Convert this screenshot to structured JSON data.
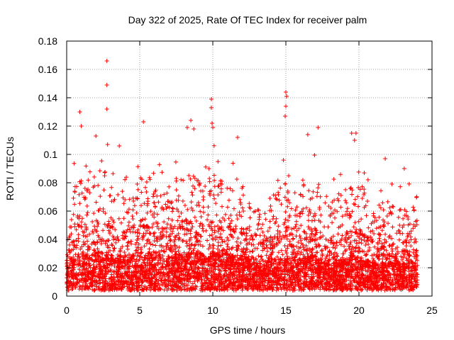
{
  "chart_data": {
    "type": "scatter",
    "title": "Day 322 of 2025, Rate Of TEC Index for receiver palm",
    "xlabel": "GPS time / hours",
    "ylabel": "ROTI / TECUs",
    "xlim": [
      0,
      25
    ],
    "ylim": [
      0,
      0.18
    ],
    "x_ticks": [
      0,
      5,
      10,
      15,
      20,
      25
    ],
    "x_tick_labels": [
      "0",
      "5",
      "10",
      "15",
      "20",
      "25"
    ],
    "y_ticks": [
      0,
      0.02,
      0.04,
      0.06,
      0.08,
      0.1,
      0.12,
      0.14,
      0.16,
      0.18
    ],
    "y_tick_labels": [
      "0",
      "0.02",
      "0.04",
      "0.06",
      "0.08",
      "0.1",
      "0.12",
      "0.14",
      "0.16",
      "0.18"
    ],
    "grid": true,
    "marker": "plus",
    "series_color": "#ff0000",
    "data_extent_hours": [
      0,
      24
    ],
    "envelope": {
      "x": [
        0,
        0.5,
        1,
        1.5,
        2,
        2.5,
        3,
        3.5,
        4,
        4.5,
        5,
        5.5,
        6,
        6.5,
        7,
        7.5,
        8,
        8.5,
        9,
        9.5,
        10,
        10.5,
        11,
        11.5,
        12,
        12.5,
        13,
        13.5,
        14,
        14.5,
        15,
        15.5,
        16,
        16.5,
        17,
        17.5,
        18,
        18.5,
        19,
        19.5,
        20,
        20.5,
        21,
        21.5,
        22,
        22.5,
        23,
        23.5,
        24
      ],
      "upper": [
        0.07,
        0.095,
        0.105,
        0.095,
        0.11,
        0.095,
        0.085,
        0.09,
        0.085,
        0.09,
        0.1,
        0.1,
        0.1,
        0.09,
        0.09,
        0.095,
        0.1,
        0.105,
        0.1,
        0.095,
        0.11,
        0.1,
        0.095,
        0.1,
        0.09,
        0.08,
        0.075,
        0.08,
        0.085,
        0.09,
        0.1,
        0.095,
        0.09,
        0.1,
        0.1,
        0.09,
        0.08,
        0.085,
        0.09,
        0.095,
        0.105,
        0.085,
        0.075,
        0.08,
        0.085,
        0.075,
        0.08,
        0.085,
        0.075
      ],
      "typical": [
        0.035,
        0.045,
        0.05,
        0.045,
        0.05,
        0.048,
        0.045,
        0.045,
        0.045,
        0.045,
        0.05,
        0.05,
        0.05,
        0.045,
        0.045,
        0.045,
        0.05,
        0.05,
        0.05,
        0.045,
        0.05,
        0.05,
        0.045,
        0.045,
        0.045,
        0.04,
        0.035,
        0.035,
        0.04,
        0.04,
        0.045,
        0.045,
        0.04,
        0.045,
        0.045,
        0.04,
        0.035,
        0.04,
        0.04,
        0.045,
        0.045,
        0.04,
        0.035,
        0.035,
        0.04,
        0.035,
        0.035,
        0.04,
        0.035
      ]
    },
    "notable_points": [
      {
        "x": 0.9,
        "y": 0.13
      },
      {
        "x": 1.0,
        "y": 0.12
      },
      {
        "x": 2.0,
        "y": 0.113
      },
      {
        "x": 2.75,
        "y": 0.166
      },
      {
        "x": 2.75,
        "y": 0.149
      },
      {
        "x": 2.75,
        "y": 0.132
      },
      {
        "x": 2.8,
        "y": 0.107
      },
      {
        "x": 3.6,
        "y": 0.106
      },
      {
        "x": 5.25,
        "y": 0.123
      },
      {
        "x": 8.25,
        "y": 0.119
      },
      {
        "x": 8.5,
        "y": 0.124
      },
      {
        "x": 8.7,
        "y": 0.118
      },
      {
        "x": 9.9,
        "y": 0.139
      },
      {
        "x": 9.9,
        "y": 0.133
      },
      {
        "x": 9.95,
        "y": 0.122
      },
      {
        "x": 10.0,
        "y": 0.119
      },
      {
        "x": 11.7,
        "y": 0.112
      },
      {
        "x": 15.0,
        "y": 0.144
      },
      {
        "x": 15.05,
        "y": 0.141
      },
      {
        "x": 15.0,
        "y": 0.134
      },
      {
        "x": 14.95,
        "y": 0.127
      },
      {
        "x": 16.5,
        "y": 0.114
      },
      {
        "x": 17.2,
        "y": 0.119
      },
      {
        "x": 19.5,
        "y": 0.115
      },
      {
        "x": 19.8,
        "y": 0.115
      },
      {
        "x": 19.7,
        "y": 0.11
      },
      {
        "x": 21.8,
        "y": 0.097
      },
      {
        "x": 23.1,
        "y": 0.09
      }
    ]
  }
}
